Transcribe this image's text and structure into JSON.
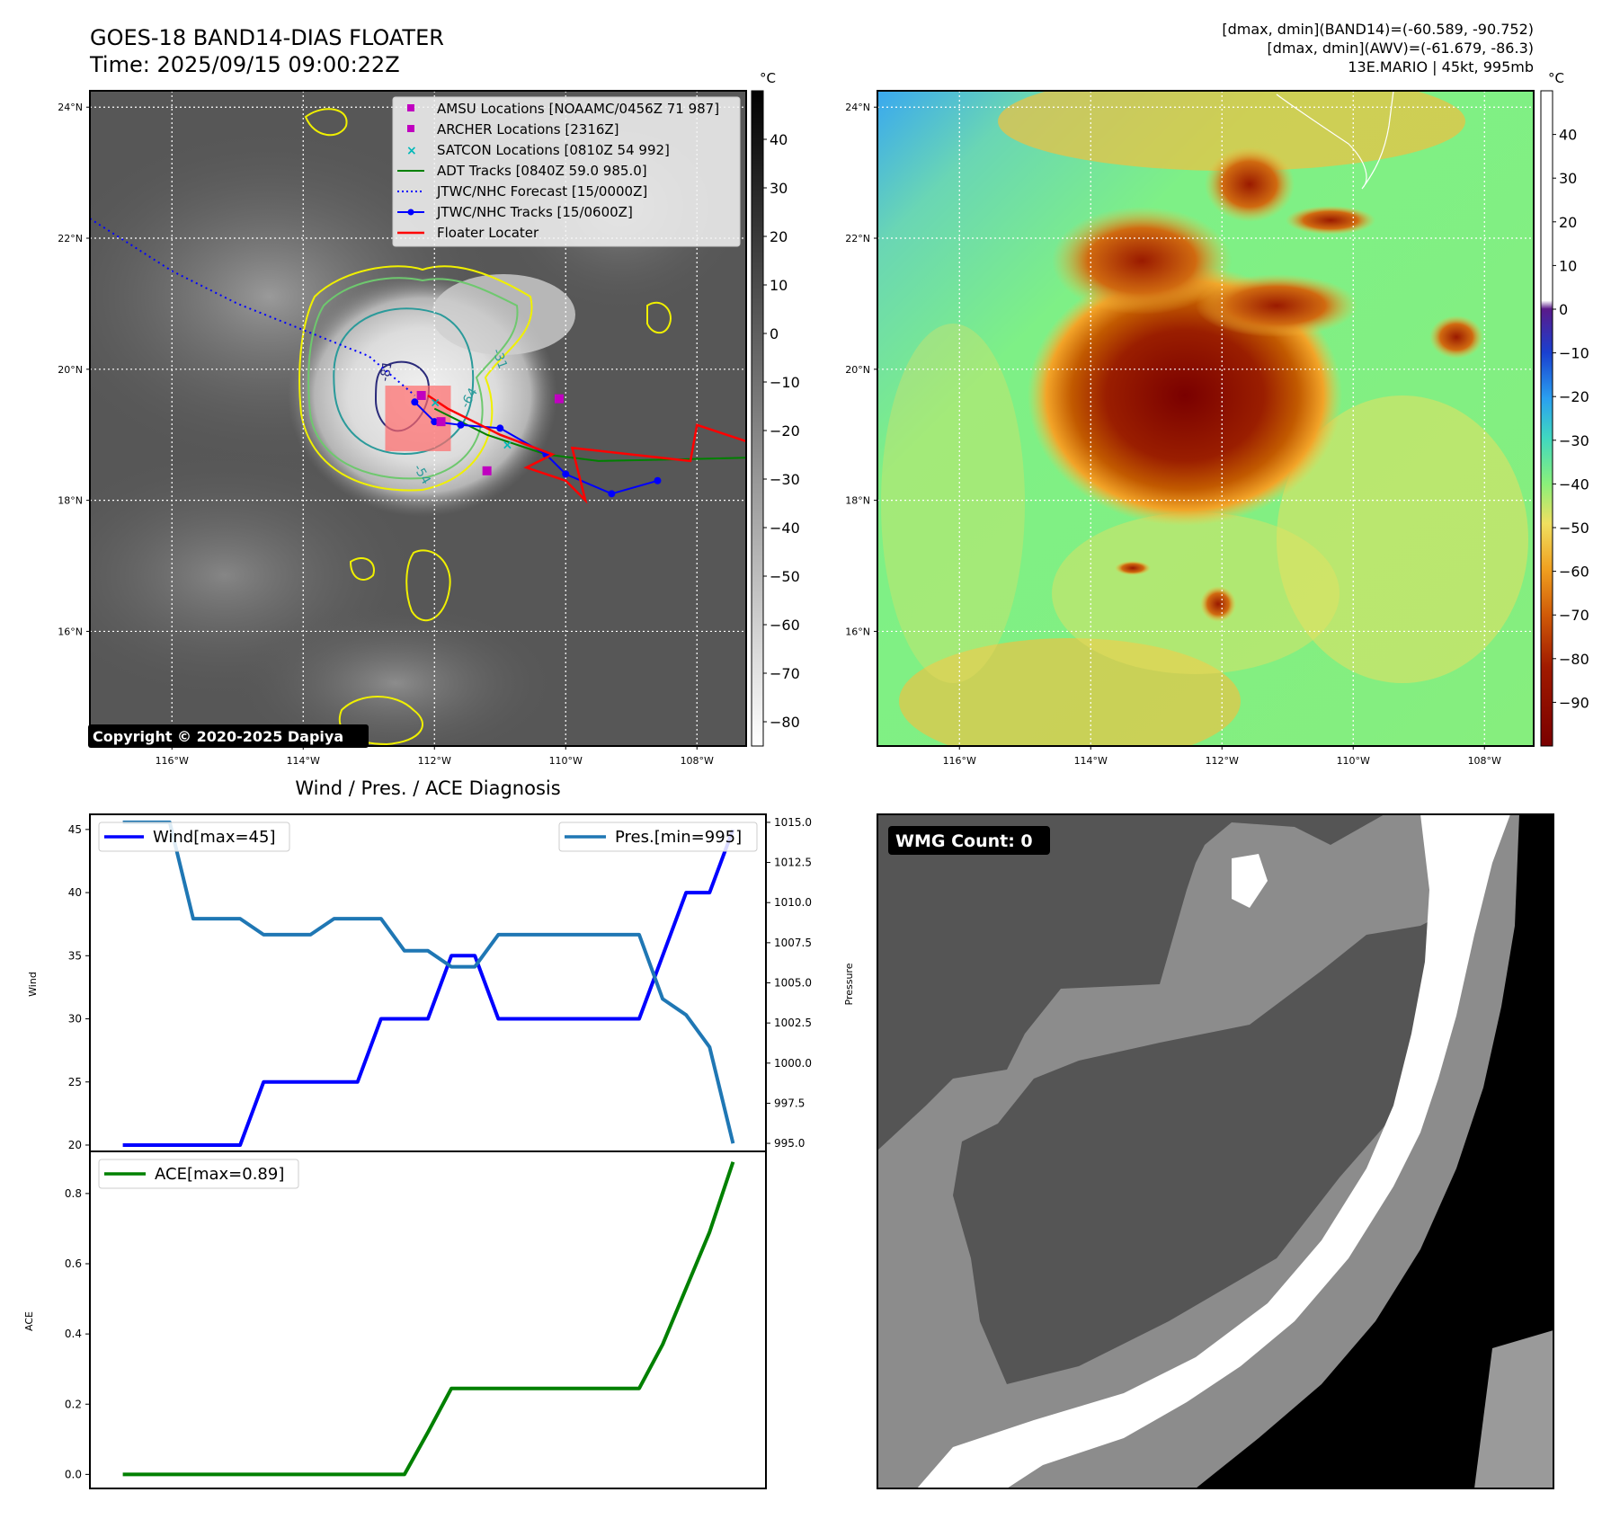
{
  "header": {
    "title": "GOES-18 BAND14-DIAS FLOATER",
    "time": "Time: 2025/09/15 09:00:22Z",
    "stats_line1": "[dmax, dmin](BAND14)=(-60.589, -90.752)",
    "stats_line2": "[dmax, dmin](AWV)=(-61.679, -86.3)",
    "stats_line3": "13E.MARIO | 45kt, 995mb"
  },
  "map_axes": {
    "lat_labels": [
      "24°N",
      "22°N",
      "20°N",
      "18°N",
      "16°N"
    ],
    "lon_labels": [
      "116°W",
      "114°W",
      "112°W",
      "110°W",
      "108°W"
    ],
    "lat_values": [
      24,
      22,
      20,
      18,
      16
    ],
    "lon_values": [
      -116,
      -114,
      -112,
      -110,
      -108
    ],
    "lat_range": [
      14.25,
      24.25
    ],
    "lon_range": [
      -117.25,
      -107.25
    ]
  },
  "ir_colorbar": {
    "unit": "°C",
    "ticks": [
      "40",
      "30",
      "20",
      "10",
      "0",
      "−10",
      "−20",
      "−30",
      "−40",
      "−50",
      "−60",
      "−70",
      "−80"
    ],
    "tick_values": [
      40,
      30,
      20,
      10,
      0,
      -10,
      -20,
      -30,
      -40,
      -50,
      -60,
      -70,
      -80
    ],
    "range": [
      -85,
      50
    ]
  },
  "awv_colorbar": {
    "unit": "°C",
    "ticks": [
      "40",
      "30",
      "20",
      "10",
      "0",
      "−10",
      "−20",
      "−30",
      "−40",
      "−50",
      "−60",
      "−70",
      "−80",
      "−90"
    ],
    "tick_values": [
      40,
      30,
      20,
      10,
      0,
      -10,
      -20,
      -30,
      -40,
      -50,
      -60,
      -70,
      -80,
      -90
    ],
    "range": [
      -100,
      50
    ]
  },
  "legend": {
    "amsu": "AMSU Locations [NOAAMC/0456Z 71 987]",
    "archer": "ARCHER Locations [2316Z]",
    "satcon": "SATCON Locations [0810Z 54 992]",
    "adt": "ADT Tracks [0840Z 59.0 985.0]",
    "forecast": "JTWC/NHC Forecast [15/0000Z]",
    "tracks": "JTWC/NHC Tracks [15/0600Z]",
    "floater": "Floater Locater"
  },
  "contour_labels": [
    "-31",
    "-54",
    "-64",
    "-81"
  ],
  "copyright": "Copyright © 2020-2025 Dapiya",
  "colors": {
    "amsu": "#c000c0",
    "satcon": "#00b8b8",
    "adt": "#008000",
    "forecast": "#0000ff",
    "tracks": "#0000ff",
    "floater": "#ff0000",
    "wind": "#0000ff",
    "pressure": "#1f77b4",
    "ace": "#008000"
  },
  "diag": {
    "title": "Wind / Pres. / ACE Diagnosis",
    "wind_label": "Wind",
    "pressure_label": "Pressure",
    "ace_label": "ACE",
    "wind_legend": "Wind[max=45]",
    "pres_legend": "Pres.[min=995]",
    "ace_legend": "ACE[max=0.89]",
    "wind_ticks": [
      "45",
      "40",
      "35",
      "30",
      "25",
      "20"
    ],
    "pres_ticks": [
      "1015.0",
      "1012.5",
      "1010.0",
      "1007.5",
      "1005.0",
      "1002.5",
      "1000.0",
      "997.5",
      "995.0"
    ],
    "ace_ticks": [
      "0.8",
      "0.6",
      "0.4",
      "0.2",
      "0.0"
    ]
  },
  "wmg": {
    "label": "WMG Count: 0"
  },
  "chart_data": [
    {
      "type": "line",
      "title": "Wind / Pres. / ACE Diagnosis",
      "ylabel": "Wind",
      "ylabel_right": "Pressure",
      "x": [
        0,
        1,
        2,
        3,
        4,
        5,
        6,
        7,
        8,
        9,
        10,
        11,
        12,
        13,
        14,
        15,
        16,
        17,
        18,
        19,
        20,
        21,
        22,
        23,
        24,
        25,
        26
      ],
      "series": [
        {
          "name": "Wind[max=45]",
          "axis": "left",
          "ylim": [
            19.5,
            46.2
          ],
          "values": [
            20,
            20,
            20,
            20,
            20,
            20,
            25,
            25,
            25,
            25,
            25,
            30,
            30,
            30,
            35,
            35,
            30,
            30,
            30,
            30,
            30,
            30,
            30,
            35,
            40,
            40,
            45
          ]
        },
        {
          "name": "Pres.[min=995]",
          "axis": "right",
          "ylim": [
            994.5,
            1015.5
          ],
          "values": [
            1015,
            1015,
            1015,
            1009,
            1009,
            1009,
            1008,
            1008,
            1008,
            1009,
            1009,
            1009,
            1007,
            1007,
            1006,
            1006,
            1008,
            1008,
            1008,
            1008,
            1008,
            1008,
            1008,
            1004,
            1003,
            1001,
            995
          ]
        }
      ]
    },
    {
      "type": "line",
      "ylabel": "ACE",
      "x": [
        0,
        1,
        2,
        3,
        4,
        5,
        6,
        7,
        8,
        9,
        10,
        11,
        12,
        13,
        14,
        15,
        16,
        17,
        18,
        19,
        20,
        21,
        22,
        23,
        24,
        25,
        26
      ],
      "ylim": [
        -0.04,
        0.92
      ],
      "series": [
        {
          "name": "ACE[max=0.89]",
          "values": [
            0,
            0,
            0,
            0,
            0,
            0,
            0,
            0,
            0,
            0,
            0,
            0,
            0,
            0.12,
            0.245,
            0.245,
            0.245,
            0.245,
            0.245,
            0.245,
            0.245,
            0.245,
            0.245,
            0.37,
            0.53,
            0.69,
            0.89
          ]
        }
      ]
    }
  ],
  "tracks": {
    "jtwc_track": [
      [
        -108.6,
        18.3
      ],
      [
        -109.3,
        18.1
      ],
      [
        -110.0,
        18.4
      ],
      [
        -110.3,
        18.7
      ],
      [
        -111.0,
        19.1
      ],
      [
        -111.6,
        19.15
      ],
      [
        -112.0,
        19.2
      ],
      [
        -112.3,
        19.5
      ]
    ],
    "jtwc_forecast": [
      [
        -117.25,
        22.3
      ],
      [
        -116.0,
        21.5
      ],
      [
        -115.0,
        21.0
      ],
      [
        -114.0,
        20.6
      ],
      [
        -113.0,
        20.2
      ],
      [
        -112.3,
        19.6
      ]
    ],
    "adt_track": [
      [
        -107.25,
        18.65
      ],
      [
        -108.5,
        18.62
      ],
      [
        -109.5,
        18.6
      ],
      [
        -110.3,
        18.7
      ],
      [
        -111.2,
        19.0
      ],
      [
        -112.0,
        19.4
      ]
    ],
    "amsu_points": [
      [
        -110.1,
        19.55
      ],
      [
        -111.2,
        18.45
      ],
      [
        -111.9,
        19.2
      ],
      [
        -112.2,
        19.6
      ]
    ],
    "satcon_points": [
      [
        -112.0,
        19.5
      ],
      [
        -110.9,
        18.85
      ]
    ],
    "floater_box": [
      [
        -112.75,
        18.75
      ],
      [
        -111.75,
        19.75
      ]
    ]
  }
}
